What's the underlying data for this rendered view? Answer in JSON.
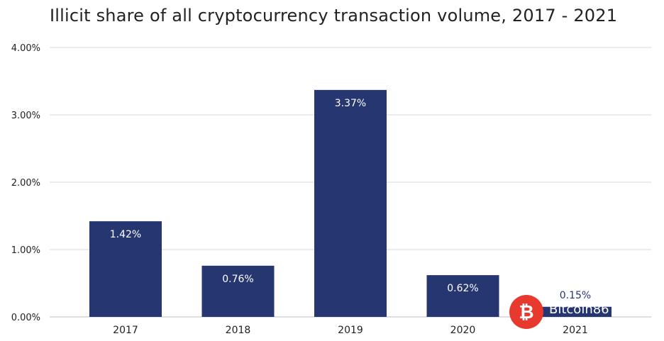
{
  "chart_data": {
    "type": "bar",
    "title": "Illicit share of all cryptocurrency transaction volume, 2017 - 2021",
    "categories": [
      "2017",
      "2018",
      "2019",
      "2020",
      "2021"
    ],
    "values": [
      1.42,
      0.76,
      3.37,
      0.62,
      0.15
    ],
    "value_labels": [
      "1.42%",
      "0.76%",
      "3.37%",
      "0.62%",
      "0.15%"
    ],
    "ylim": [
      0,
      4
    ],
    "yticks": [
      0,
      1,
      2,
      3,
      4
    ],
    "ytick_labels": [
      "0.00%",
      "1.00%",
      "2.00%",
      "3.00%",
      "4.00%"
    ],
    "xlabel": "",
    "ylabel": "",
    "grid": true,
    "colors": {
      "bar": "#263670",
      "grid": "#d9d9d9",
      "label_inside": "#ffffff",
      "label_outside": "#263670"
    }
  },
  "watermark": {
    "text": "Bitcoin86",
    "icon": "bitcoin-icon",
    "color": "#e8392f"
  }
}
